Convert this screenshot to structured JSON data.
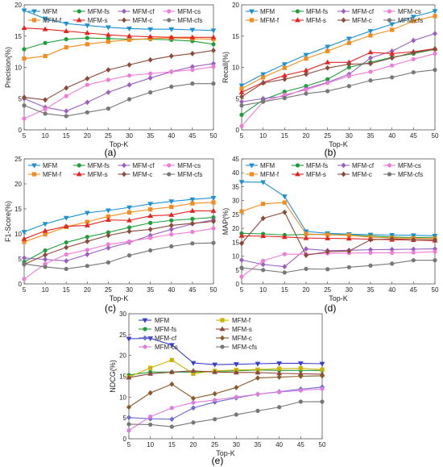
{
  "chart_data": [
    {
      "id": "a",
      "type": "line",
      "caption": "(a)",
      "xlabel": "Top-K",
      "ylabel": "Precision(%)",
      "x": [
        5,
        10,
        15,
        20,
        25,
        30,
        35,
        40,
        45,
        50
      ],
      "xlim": [
        5,
        50
      ],
      "ylim": [
        0,
        20
      ],
      "yticks": [
        0,
        5,
        10,
        15,
        20
      ],
      "series": [
        {
          "name": "MFM",
          "values": [
            19.1,
            17.8,
            17.0,
            16.7,
            16.4,
            16.2,
            16.1,
            16.1,
            16.0,
            15.9
          ]
        },
        {
          "name": "MFM-fs",
          "values": [
            12.9,
            13.9,
            14.5,
            14.7,
            14.6,
            14.5,
            14.5,
            14.4,
            14.2,
            13.7
          ]
        },
        {
          "name": "MFM-cf",
          "values": [
            5.0,
            3.6,
            3.0,
            4.4,
            6.0,
            7.2,
            8.3,
            9.3,
            10.1,
            10.6
          ]
        },
        {
          "name": "MFM-cs",
          "values": [
            1.8,
            3.3,
            5.4,
            7.2,
            8.0,
            8.7,
            9.0,
            9.3,
            9.6,
            10.1
          ]
        },
        {
          "name": "MFM-f",
          "values": [
            11.4,
            11.8,
            13.2,
            13.7,
            14.1,
            14.4,
            14.6,
            14.7,
            14.6,
            14.5
          ]
        },
        {
          "name": "MFM-s",
          "values": [
            16.3,
            16.1,
            15.8,
            15.5,
            15.2,
            15.0,
            14.9,
            14.8,
            14.8,
            14.8
          ]
        },
        {
          "name": "MFM-c",
          "values": [
            5.2,
            4.8,
            6.7,
            8.2,
            9.6,
            10.4,
            11.2,
            11.8,
            12.2,
            12.7
          ]
        },
        {
          "name": "MFM-cfs",
          "values": [
            3.9,
            2.6,
            2.2,
            2.8,
            3.4,
            4.9,
            6.0,
            6.9,
            7.4,
            7.4
          ]
        }
      ],
      "legend": [
        [
          "MFM",
          "MFM-fs",
          "MFM-cf",
          "MFM-cs"
        ],
        [
          "MFM-f",
          "MFM-s",
          "MFM-c",
          "MFM-cfs"
        ]
      ]
    },
    {
      "id": "b",
      "type": "line",
      "caption": "(b)",
      "xlabel": "Top-K",
      "ylabel": "Recall(%)",
      "x": [
        5,
        10,
        15,
        20,
        25,
        30,
        35,
        40,
        45,
        50
      ],
      "xlim": [
        5,
        50
      ],
      "ylim": [
        0,
        20
      ],
      "yticks": [
        0,
        5,
        10,
        15,
        20
      ],
      "series": [
        {
          "name": "MFM",
          "values": [
            7.1,
            8.9,
            10.5,
            12.0,
            13.3,
            14.6,
            15.8,
            16.9,
            18.1,
            19.0
          ]
        },
        {
          "name": "MFM-fs",
          "values": [
            2.4,
            4.8,
            6.1,
            7.0,
            8.1,
            10.0,
            10.8,
            11.6,
            12.2,
            12.9
          ]
        },
        {
          "name": "MFM-cf",
          "values": [
            4.5,
            5.0,
            5.4,
            6.6,
            7.6,
            8.9,
            11.5,
            12.6,
            14.3,
            15.4
          ]
        },
        {
          "name": "MFM-cs",
          "values": [
            0.6,
            4.5,
            5.6,
            6.4,
            7.5,
            8.6,
            9.3,
            10.3,
            11.3,
            12.2
          ]
        },
        {
          "name": "MFM-f",
          "values": [
            6.6,
            8.4,
            9.9,
            11.4,
            12.6,
            13.9,
            15.1,
            16.0,
            17.4,
            18.2
          ]
        },
        {
          "name": "MFM-s",
          "values": [
            6.0,
            7.6,
            8.7,
            9.5,
            10.8,
            10.8,
            12.4,
            12.2,
            12.5,
            13.0
          ]
        },
        {
          "name": "MFM-c",
          "values": [
            5.3,
            7.5,
            8.1,
            8.9,
            9.9,
            10.5,
            10.6,
            11.5,
            12.4,
            12.9
          ]
        },
        {
          "name": "MFM-cfs",
          "values": [
            3.9,
            4.5,
            5.1,
            5.8,
            6.2,
            7.0,
            7.9,
            8.4,
            9.2,
            9.6
          ]
        }
      ],
      "legend": [
        [
          "MFM",
          "MFM-fs",
          "MFM-cf",
          "MFM-cs"
        ],
        [
          "MFM-f",
          "MFM-s",
          "MFM-c",
          "MFM-cfs"
        ]
      ]
    },
    {
      "id": "c",
      "type": "line",
      "caption": "(c)",
      "xlabel": "Top-K",
      "ylabel": "F1-Score(%)",
      "x": [
        5,
        10,
        15,
        20,
        25,
        30,
        35,
        40,
        45,
        50
      ],
      "xlim": [
        5,
        50
      ],
      "ylim": [
        0,
        25
      ],
      "yticks": [
        0,
        5,
        10,
        15,
        20,
        25
      ],
      "series": [
        {
          "name": "MFM",
          "values": [
            10.4,
            12.0,
            13.2,
            14.2,
            14.7,
            15.3,
            16.0,
            16.5,
            16.9,
            17.2
          ]
        },
        {
          "name": "MFM-fs",
          "values": [
            4.4,
            6.7,
            8.3,
            9.4,
            10.3,
            11.3,
            12.2,
            12.7,
            13.0,
            13.3
          ]
        },
        {
          "name": "MFM-cf",
          "values": [
            5.2,
            4.9,
            4.6,
            5.9,
            7.2,
            8.3,
            9.7,
            10.9,
            12.0,
            12.8
          ]
        },
        {
          "name": "MFM-cs",
          "values": [
            1.0,
            4.0,
            5.9,
            6.8,
            7.9,
            8.5,
            9.2,
            9.9,
            10.4,
            11.1
          ]
        },
        {
          "name": "MFM-f",
          "values": [
            8.4,
            9.9,
            11.4,
            12.4,
            13.5,
            14.3,
            14.9,
            15.4,
            16.1,
            16.3
          ]
        },
        {
          "name": "MFM-s",
          "values": [
            9.0,
            10.6,
            11.5,
            11.7,
            12.8,
            12.7,
            13.6,
            13.8,
            14.6,
            14.6
          ]
        },
        {
          "name": "MFM-c",
          "values": [
            3.9,
            5.8,
            7.3,
            8.5,
            9.7,
            10.5,
            10.9,
            11.7,
            12.1,
            12.5
          ]
        },
        {
          "name": "MFM-cfs",
          "values": [
            4.0,
            3.4,
            3.0,
            3.6,
            4.3,
            5.7,
            6.7,
            7.5,
            8.1,
            8.2
          ]
        }
      ],
      "legend": [
        [
          "MFM",
          "MFM-fs",
          "MFM-cf",
          "MFM-cs"
        ],
        [
          "MFM-f",
          "MFM-s",
          "MFM-c",
          "MFM-cfs"
        ]
      ]
    },
    {
      "id": "d",
      "type": "line",
      "caption": "(d)",
      "xlabel": "Top-K",
      "ylabel": "MAP(%)",
      "x": [
        5,
        10,
        15,
        20,
        25,
        30,
        35,
        40,
        45,
        50
      ],
      "xlim": [
        5,
        50
      ],
      "ylim": [
        0,
        45
      ],
      "yticks": [
        0,
        5,
        10,
        15,
        20,
        25,
        30,
        35,
        40,
        45
      ],
      "series": [
        {
          "name": "MFM",
          "values": [
            36.7,
            36.6,
            31.5,
            18.9,
            18.2,
            17.9,
            17.7,
            17.6,
            17.5,
            17.3
          ]
        },
        {
          "name": "MFM-fs",
          "values": [
            18.2,
            18.0,
            17.6,
            17.8,
            17.8,
            17.6,
            17.2,
            16.9,
            16.7,
            16.6
          ]
        },
        {
          "name": "MFM-cf",
          "values": [
            8.6,
            7.0,
            6.2,
            12.6,
            12.0,
            12.1,
            12.3,
            12.4,
            12.5,
            12.6
          ]
        },
        {
          "name": "MFM-cs",
          "values": [
            2.6,
            8.3,
            10.7,
            10.7,
            11.0,
            11.1,
            11.2,
            11.2,
            11.3,
            11.6
          ]
        },
        {
          "name": "MFM-f",
          "values": [
            26.1,
            28.8,
            29.3,
            18.0,
            17.7,
            17.5,
            16.8,
            16.6,
            16.4,
            16.3
          ]
        },
        {
          "name": "MFM-s",
          "values": [
            17.3,
            17.2,
            16.9,
            16.5,
            16.4,
            16.3,
            16.1,
            15.9,
            15.8,
            15.6
          ]
        },
        {
          "name": "MFM-c",
          "values": [
            14.6,
            23.6,
            25.8,
            10.3,
            11.6,
            11.8,
            15.9,
            16.2,
            15.9,
            15.8
          ]
        },
        {
          "name": "MFM-cfs",
          "values": [
            5.8,
            5.0,
            4.1,
            5.4,
            5.3,
            6.0,
            6.6,
            7.3,
            8.5,
            8.5
          ]
        }
      ],
      "legend": [
        [
          "MFM",
          "MFM-fs",
          "MFM-cf",
          "MFM-cs"
        ],
        [
          "MFM-f",
          "MFM-s",
          "MFM-c",
          "MFM-cfs"
        ]
      ]
    },
    {
      "id": "e",
      "type": "line",
      "caption": "(e)",
      "xlabel": "Top-K",
      "ylabel": "NDCG(%)",
      "x": [
        5,
        10,
        15,
        20,
        25,
        30,
        35,
        40,
        45,
        50
      ],
      "xlim": [
        5,
        50
      ],
      "ylim": [
        0,
        30
      ],
      "yticks": [
        0,
        5,
        10,
        15,
        20,
        25,
        30
      ],
      "series": [
        {
          "name": "MFM",
          "values": [
            24.0,
            24.1,
            22.5,
            18.2,
            17.8,
            17.9,
            18.0,
            18.1,
            18.1,
            18.0
          ]
        },
        {
          "name": "MFM-fs",
          "values": [
            15.3,
            16.0,
            16.0,
            16.0,
            16.2,
            16.3,
            16.5,
            16.4,
            16.4,
            16.4
          ]
        },
        {
          "name": "MFM-cf",
          "values": [
            5.1,
            4.8,
            4.7,
            7.4,
            8.8,
            9.8,
            10.7,
            11.3,
            11.9,
            12.4
          ]
        },
        {
          "name": "MFM-cs",
          "values": [
            2.0,
            5.3,
            7.4,
            8.7,
            9.3,
            10.0,
            10.7,
            11.2,
            11.6,
            12.0
          ]
        },
        {
          "name": "MFM-f",
          "values": [
            14.8,
            17.0,
            18.9,
            15.6,
            16.3,
            16.5,
            16.6,
            16.8,
            16.9,
            16.6
          ]
        },
        {
          "name": "MFM-s",
          "values": [
            14.7,
            15.6,
            16.0,
            16.3,
            16.0,
            15.9,
            15.9,
            15.7,
            15.6,
            15.5
          ]
        },
        {
          "name": "MFM-c",
          "values": [
            7.6,
            11.0,
            13.1,
            9.7,
            10.8,
            12.3,
            14.6,
            14.8,
            15.0,
            15.1
          ]
        },
        {
          "name": "MFM-cfs",
          "values": [
            3.5,
            3.4,
            2.9,
            3.9,
            4.7,
            5.8,
            6.7,
            7.6,
            8.9,
            8.9
          ]
        }
      ],
      "legend": [
        [
          "MFM",
          "MFM-f",
          "MFM-fs",
          "MFM-s",
          "MFM-cf",
          "MFM-c",
          "MFM-cs",
          "MFM-cfs"
        ]
      ]
    }
  ],
  "series_style": {
    "MFM": {
      "color": "#1f8fcf",
      "marker": "tri-down"
    },
    "MFM-fs": {
      "color": "#1e9e3a",
      "marker": "circle"
    },
    "MFM-cf": {
      "color": "#9a5fc0",
      "marker": "diamond"
    },
    "MFM-cs": {
      "color": "#f07cd8",
      "marker": "circle"
    },
    "MFM-f": {
      "color": "#f28c1e",
      "marker": "square"
    },
    "MFM-s": {
      "color": "#e52420",
      "marker": "tri-up"
    },
    "MFM-c": {
      "color": "#8b4a3a",
      "marker": "diamond"
    },
    "MFM-cfs": {
      "color": "#777777",
      "marker": "circle"
    }
  },
  "series_style_e": {
    "MFM": {
      "color": "#3a3ec8",
      "marker": "tri-down"
    },
    "MFM-f": {
      "color": "#c8b400",
      "marker": "square"
    },
    "MFM-fs": {
      "color": "#1e9e3a",
      "marker": "circle"
    },
    "MFM-s": {
      "color": "#8b4a3a",
      "marker": "tri-up"
    },
    "MFM-cf": {
      "color": "#6a6ad0",
      "marker": "diamond"
    },
    "MFM-c": {
      "color": "#8b5a2b",
      "marker": "diamond"
    },
    "MFM-cs": {
      "color": "#e07ce0",
      "marker": "circle"
    },
    "MFM-cfs": {
      "color": "#777777",
      "marker": "circle"
    }
  }
}
